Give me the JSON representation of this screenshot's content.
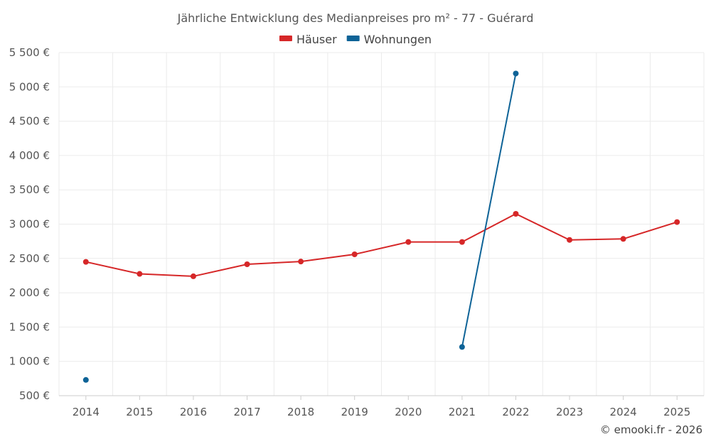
{
  "chart_data": {
    "type": "line",
    "title": "Jährliche Entwicklung des Medianpreises pro m² - 77 - Guérard",
    "xlabel": "",
    "ylabel": "",
    "categories": [
      "2014",
      "2015",
      "2016",
      "2017",
      "2018",
      "2019",
      "2020",
      "2021",
      "2022",
      "2023",
      "2024",
      "2025"
    ],
    "ylim": [
      500,
      5500
    ],
    "y_ticks": [
      500,
      1000,
      1500,
      2000,
      2500,
      3000,
      3500,
      4000,
      4500,
      5000,
      5500
    ],
    "y_tick_labels": [
      "500 €",
      "1 000 €",
      "1 500 €",
      "2 000 €",
      "2 500 €",
      "3 000 €",
      "3 500 €",
      "4 000 €",
      "4 500 €",
      "5 000 €",
      "5 500 €"
    ],
    "grid": true,
    "legend_position": "top-center",
    "series": [
      {
        "name": "Häuser",
        "color": "#d62728",
        "values": [
          2450,
          2275,
          2240,
          2415,
          2455,
          2560,
          2740,
          2740,
          3150,
          2770,
          2785,
          3030
        ]
      },
      {
        "name": "Wohnungen",
        "color": "#0e6397",
        "values": [
          730,
          null,
          null,
          null,
          null,
          null,
          null,
          1210,
          5195,
          null,
          null,
          null
        ]
      }
    ]
  },
  "credit": "© emooki.fr - 2026"
}
